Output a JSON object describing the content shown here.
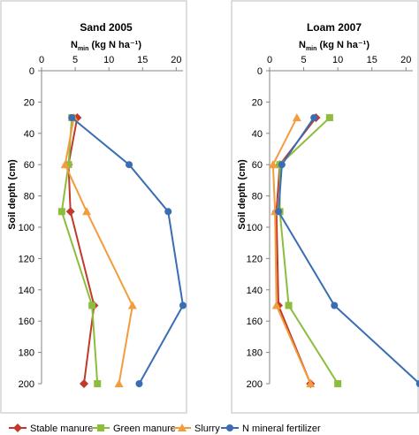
{
  "chart_data": [
    {
      "type": "line",
      "title": "Sand 2005",
      "xlabel_main": "N",
      "xlabel_sub": "min",
      "xlabel_rest": " (kg N ha⁻¹)",
      "ylabel": "Soil depth (cm)",
      "xlim": [
        0,
        21
      ],
      "ylim": [
        0,
        200
      ],
      "x_ticks": [
        "0",
        "5",
        "10",
        "15",
        "20"
      ],
      "y_ticks": [
        "0",
        "20",
        "40",
        "60",
        "80",
        "100",
        "120",
        "140",
        "160",
        "180",
        "200"
      ],
      "y_reversed": true,
      "grid": false,
      "series": [
        {
          "name": "Stable manure",
          "color": "#c0392b",
          "marker": "diamond",
          "points": [
            [
              5.3,
              30
            ],
            [
              4.0,
              60
            ],
            [
              4.3,
              90
            ],
            [
              7.8,
              150
            ],
            [
              6.3,
              200
            ]
          ]
        },
        {
          "name": "Green manure",
          "color": "#8dbd3c",
          "marker": "square",
          "points": [
            [
              4.5,
              30
            ],
            [
              4.0,
              60
            ],
            [
              3.0,
              90
            ],
            [
              7.5,
              150
            ],
            [
              8.3,
              200
            ]
          ]
        },
        {
          "name": "Slurry",
          "color": "#f39c3d",
          "marker": "triangle",
          "points": [
            [
              4.8,
              30
            ],
            [
              3.5,
              60
            ],
            [
              6.7,
              90
            ],
            [
              13.5,
              150
            ],
            [
              11.5,
              200
            ]
          ]
        },
        {
          "name": "N mineral fertilizer",
          "color": "#3a6db3",
          "marker": "circle",
          "points": [
            [
              4.5,
              30
            ],
            [
              13.0,
              60
            ],
            [
              18.8,
              90
            ],
            [
              21.0,
              150
            ],
            [
              14.5,
              200
            ]
          ]
        }
      ]
    },
    {
      "type": "line",
      "title": "Loam 2007",
      "xlabel_main": "N",
      "xlabel_sub": "min",
      "xlabel_rest": " (kg N ha⁻¹)",
      "ylabel": "Soil depth (cm)",
      "xlim": [
        0,
        21
      ],
      "ylim": [
        0,
        200
      ],
      "x_ticks": [
        "0",
        "5",
        "10",
        "15",
        "20"
      ],
      "y_ticks": [
        "0",
        "20",
        "40",
        "60",
        "80",
        "100",
        "120",
        "140",
        "160",
        "180",
        "200"
      ],
      "y_reversed": true,
      "grid": false,
      "series": [
        {
          "name": "Stable manure",
          "color": "#c0392b",
          "marker": "diamond",
          "points": [
            [
              6.8,
              30
            ],
            [
              1.5,
              60
            ],
            [
              1.0,
              90
            ],
            [
              1.3,
              150
            ],
            [
              6.0,
              200
            ]
          ]
        },
        {
          "name": "Green manure",
          "color": "#8dbd3c",
          "marker": "square",
          "points": [
            [
              8.8,
              30
            ],
            [
              1.5,
              60
            ],
            [
              1.5,
              90
            ],
            [
              2.8,
              150
            ],
            [
              10.0,
              200
            ]
          ]
        },
        {
          "name": "Slurry",
          "color": "#f39c3d",
          "marker": "triangle",
          "points": [
            [
              4.0,
              30
            ],
            [
              0.5,
              60
            ],
            [
              0.8,
              90
            ],
            [
              1.0,
              150
            ],
            [
              6.0,
              200
            ]
          ]
        },
        {
          "name": "N mineral fertilizer",
          "color": "#3a6db3",
          "marker": "circle",
          "points": [
            [
              6.5,
              30
            ],
            [
              1.8,
              60
            ],
            [
              1.3,
              90
            ],
            [
              9.5,
              150
            ],
            [
              22.0,
              200
            ]
          ]
        }
      ]
    }
  ],
  "legend": {
    "placement": "bottom",
    "items": [
      {
        "label": "Stable manure",
        "color": "#c0392b",
        "marker": "diamond"
      },
      {
        "label": "Green manure",
        "color": "#8dbd3c",
        "marker": "square"
      },
      {
        "label": "Slurry",
        "color": "#f39c3d",
        "marker": "triangle"
      },
      {
        "label": "N mineral fertilizer",
        "color": "#3a6db3",
        "marker": "circle"
      }
    ]
  }
}
